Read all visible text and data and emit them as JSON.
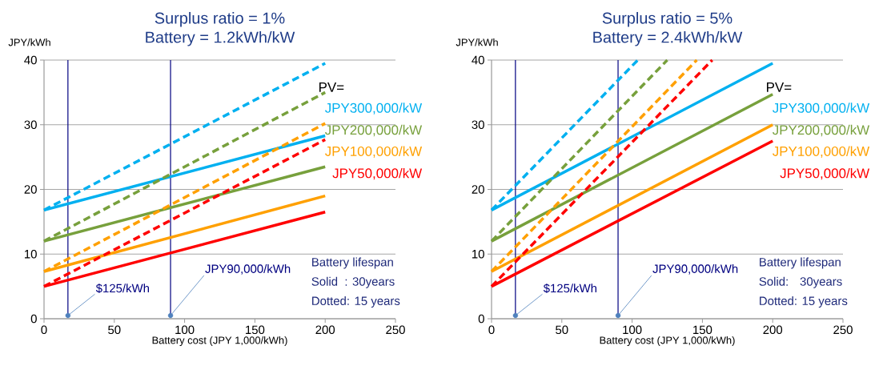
{
  "chart_data": [
    {
      "type": "line",
      "title": "Surplus ratio = 1%",
      "subtitle": "Battery = 1.2kWh/kW",
      "xlabel": "Battery cost (JPY 1,000/kWh)",
      "ylabel": "JPY/kWh",
      "legend_title": "PV=",
      "xlim": [
        0,
        250
      ],
      "xticks": [
        0,
        50,
        100,
        150,
        200,
        250
      ],
      "ylim": [
        0,
        40
      ],
      "yticks": [
        0,
        10,
        20,
        30,
        40
      ],
      "grid": "y",
      "series": [
        {
          "name": "JPY300,000/kW",
          "color": "#00b0f0",
          "x": [
            0,
            200
          ],
          "values": [
            16.8,
            28.3
          ]
        },
        {
          "name": "JPY200,000/kW",
          "color": "#77a03c",
          "x": [
            0,
            200
          ],
          "values": [
            12,
            23.5
          ]
        },
        {
          "name": "JPY100,000/kW",
          "color": "#ffa000",
          "x": [
            0,
            200
          ],
          "values": [
            7.3,
            19
          ]
        },
        {
          "name": "JPY50,000/kW",
          "color": "#ff0000",
          "x": [
            0,
            200
          ],
          "values": [
            5,
            16.5
          ]
        },
        {
          "color": "#00b0f0",
          "line_style": "dashed",
          "x": [
            0,
            200
          ],
          "values": [
            16.8,
            39.5
          ]
        },
        {
          "color": "#77a03c",
          "line_style": "dashed",
          "x": [
            0,
            200
          ],
          "values": [
            12,
            35
          ]
        },
        {
          "color": "#ffa000",
          "line_style": "dashed",
          "x": [
            0,
            200
          ],
          "values": [
            7.3,
            30.2
          ]
        },
        {
          "color": "#ff0000",
          "line_style": "dashed",
          "x": [
            0,
            200
          ],
          "values": [
            5,
            27.7
          ]
        },
        {
          "type": "scatter",
          "color": "#4f81bd",
          "x": [
            17,
            90
          ],
          "values": [
            0.5,
            0.5
          ]
        }
      ],
      "ref_lines": [
        {
          "axis": "x",
          "value": 17,
          "label": "$125/kWh",
          "color": "#000080"
        },
        {
          "axis": "x",
          "value": 90,
          "label": "JPY90,000/kWh",
          "color": "#000080"
        }
      ],
      "annotations": [
        "Battery lifespan",
        "Solid  : 30years",
        "Dotted: 15 years"
      ]
    },
    {
      "type": "line",
      "title": "Surplus ratio = 5%",
      "subtitle": "Battery = 2.4kWh/kW",
      "xlabel": "Battery cost (JPY 1,000/kWh)",
      "ylabel": "JPY/kWh",
      "legend_title": "PV=",
      "xlim": [
        0,
        250
      ],
      "xticks": [
        0,
        50,
        100,
        150,
        200,
        250
      ],
      "ylim": [
        0,
        40
      ],
      "yticks": [
        0,
        10,
        20,
        30,
        40
      ],
      "grid": "y",
      "series": [
        {
          "name": "JPY300,000/kW",
          "color": "#00b0f0",
          "x": [
            0,
            200
          ],
          "values": [
            16.8,
            39.5
          ]
        },
        {
          "name": "JPY200,000/kW",
          "color": "#77a03c",
          "x": [
            0,
            200
          ],
          "values": [
            12,
            34.7
          ]
        },
        {
          "name": "JPY100,000/kW",
          "color": "#ffa000",
          "x": [
            0,
            200
          ],
          "values": [
            7.3,
            30
          ]
        },
        {
          "name": "JPY50,000/kW",
          "color": "#ff0000",
          "x": [
            0,
            200
          ],
          "values": [
            5,
            27.5
          ]
        },
        {
          "color": "#00b0f0",
          "line_style": "dashed",
          "x": [
            0,
            104
          ],
          "values": [
            16.8,
            40
          ]
        },
        {
          "color": "#77a03c",
          "line_style": "dashed",
          "x": [
            0,
            125
          ],
          "values": [
            12,
            40
          ]
        },
        {
          "color": "#ffa000",
          "line_style": "dashed",
          "x": [
            0,
            146
          ],
          "values": [
            7.3,
            40
          ]
        },
        {
          "color": "#ff0000",
          "line_style": "dashed",
          "x": [
            0,
            157
          ],
          "values": [
            5,
            40
          ]
        },
        {
          "type": "scatter",
          "color": "#4f81bd",
          "x": [
            17,
            90
          ],
          "values": [
            0.5,
            0.5
          ]
        }
      ],
      "ref_lines": [
        {
          "axis": "x",
          "value": 17,
          "label": "$125/kWh",
          "color": "#000080"
        },
        {
          "axis": "x",
          "value": 90,
          "label": "JPY90,000/kWh",
          "color": "#000080"
        }
      ],
      "annotations": [
        "Battery lifespan",
        "Solid:   30years",
        "Dotted: 15 years"
      ]
    }
  ]
}
